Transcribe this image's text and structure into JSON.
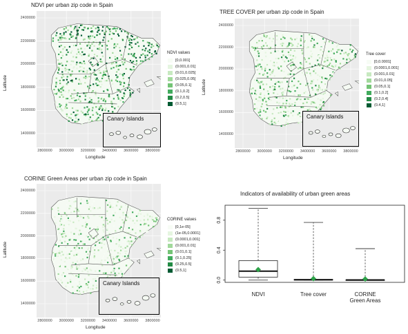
{
  "panels": [
    {
      "id": "ndvi",
      "title": "NDVI per urban zip code in Spain",
      "ylabel": "Latitude",
      "xlabel": "Longitude",
      "yticks": [
        "2400000",
        "2200000",
        "2000000",
        "1800000",
        "1600000",
        "1400000"
      ],
      "xticks": [
        "2800000",
        "3000000",
        "3200000",
        "3400000",
        "3600000",
        "3800000"
      ],
      "legend_title": "NDVI values",
      "legend": [
        "[0,0.001]",
        "(0.001,0.01]",
        "(0.01,0.025]",
        "(0.025,0.05]",
        "(0.05,0.1]",
        "(0.1,0.2]",
        "(0.2,0.5]",
        "(0.5,1]"
      ],
      "inset_label": "Canary Islands"
    },
    {
      "id": "tree",
      "title": "TREE COVER per urban zip code in Spain",
      "ylabel": "Latitude",
      "xlabel": "Longitude",
      "yticks": [
        "2400000",
        "2200000",
        "2000000",
        "1800000",
        "1600000",
        "1400000"
      ],
      "xticks": [
        "2800000",
        "3000000",
        "3200000",
        "3400000",
        "3600000",
        "3800000"
      ],
      "legend_title": "Tree cover",
      "legend": [
        "[0,0.0001]",
        "(0.0001,0.001]",
        "(0.001,0.01]",
        "(0.01,0.05]",
        "(0.05,0.1]",
        "(0.1,0.2]",
        "(0.2,0.4]",
        "(0.4,1]"
      ],
      "inset_label": "Canary Islands"
    },
    {
      "id": "corine",
      "title": "CORINE Green Areas per urban zip code in Spain",
      "ylabel": "Latitude",
      "xlabel": "Longitude",
      "yticks": [
        "2400000",
        "2200000",
        "2000000",
        "1800000",
        "1600000",
        "1400000"
      ],
      "xticks": [
        "2800000",
        "3000000",
        "3200000",
        "3400000",
        "3600000",
        "3800000"
      ],
      "legend_title": "CORINE values",
      "legend": [
        "[0,1e-05]",
        "(1e-05,0.0001]",
        "(0.0001,0.001]",
        "(0.001,0.01]",
        "(0.01,0.1]",
        "(0.1,0.25]",
        "(0.25,0.5]",
        "(0.5,1]"
      ],
      "inset_label": "Canary Islands"
    }
  ],
  "legend_colors": [
    "#f7fcf5",
    "#e5f5e0",
    "#c7e9c0",
    "#a1d99b",
    "#74c476",
    "#41ab5d",
    "#238b45",
    "#005a32"
  ],
  "chart_data": {
    "type": "box",
    "title": "Indicators of availability of urban green areas",
    "categories": [
      "NDVI",
      "Tree cover",
      "CORINE Green Areas"
    ],
    "category_lines": [
      [
        "NDVI"
      ],
      [
        "Tree cover"
      ],
      [
        "CORINE",
        "Green Areas"
      ]
    ],
    "ylim": [
      0,
      1
    ],
    "yticks": [
      "0.0",
      "0.4",
      "0.8"
    ],
    "ytick_values": [
      0,
      0.4,
      0.8
    ],
    "boxes": [
      {
        "name": "NDVI",
        "whisker_low": 0.0,
        "q1": 0.04,
        "median": 0.12,
        "q3": 0.26,
        "whisker_high": 0.96,
        "mean": 0.14
      },
      {
        "name": "Tree cover",
        "whisker_low": 0.0,
        "q1": 0.0,
        "median": 0.005,
        "q3": 0.01,
        "whisker_high": 0.77,
        "mean": 0.02
      },
      {
        "name": "CORINE Green Areas",
        "whisker_low": 0.0,
        "q1": 0.0,
        "median": 0.002,
        "q3": 0.005,
        "whisker_high": 0.42,
        "mean": 0.015
      }
    ],
    "mean_color": "#2ea34a"
  }
}
